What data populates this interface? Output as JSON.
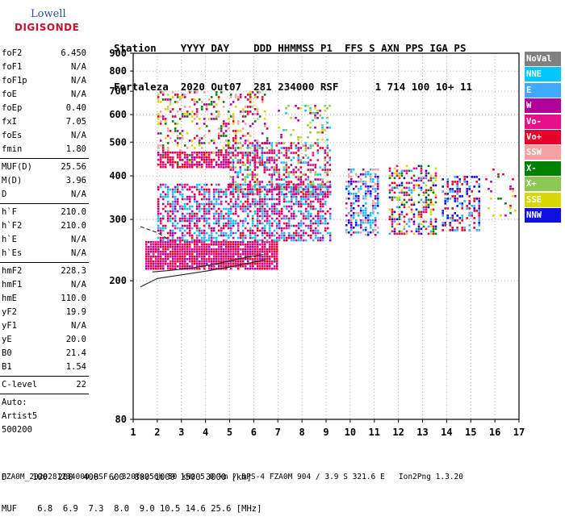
{
  "logo": {
    "line1": "Lowell",
    "line2": "DIGISONDE"
  },
  "header": {
    "row1": "Station    YYYY DAY    DDD HHMMSS P1  FFS S AXN PPS IGA PS",
    "row2": "Fortaleza  2020 Out07  281 234000 RSF      1 714 100 10+ 11"
  },
  "params": [
    {
      "name": "foF2",
      "value": "6.450"
    },
    {
      "name": "foF1",
      "value": "N/A"
    },
    {
      "name": "foF1p",
      "value": "N/A"
    },
    {
      "name": "foE",
      "value": "N/A"
    },
    {
      "name": "foEp",
      "value": "0.40"
    },
    {
      "name": "fxI",
      "value": "7.05"
    },
    {
      "name": "foEs",
      "value": "N/A"
    },
    {
      "name": "fmin",
      "value": "1.80",
      "sep": true
    },
    {
      "name": "MUF(D)",
      "value": "25.56"
    },
    {
      "name": "M(D)",
      "value": "3.96"
    },
    {
      "name": "D",
      "value": "N/A",
      "sep": true
    },
    {
      "name": "h`F",
      "value": "210.0"
    },
    {
      "name": "h`F2",
      "value": "210.0"
    },
    {
      "name": "h`E",
      "value": "N/A"
    },
    {
      "name": "h`Es",
      "value": "N/A",
      "sep": true
    },
    {
      "name": "hmF2",
      "value": "228.3"
    },
    {
      "name": "hmF1",
      "value": "N/A"
    },
    {
      "name": "hmE",
      "value": "110.0"
    },
    {
      "name": "yF2",
      "value": "19.9"
    },
    {
      "name": "yF1",
      "value": "N/A"
    },
    {
      "name": "yE",
      "value": "20.0"
    },
    {
      "name": "B0",
      "value": "21.4"
    },
    {
      "name": "B1",
      "value": "1.54",
      "sep": true
    },
    {
      "name": "C-level",
      "value": "22",
      "sep": true
    },
    {
      "name": "Auto:",
      "value": ""
    },
    {
      "name": "Artist5",
      "value": ""
    },
    {
      "name": "500200",
      "value": ""
    }
  ],
  "legend": [
    {
      "label": "NoVal",
      "color": "#808080",
      "text": "#ffffff"
    },
    {
      "label": "NNE",
      "color": "#00c8ff",
      "text": "#ffffff"
    },
    {
      "label": "E",
      "color": "#40a8ff",
      "text": "#ffffff"
    },
    {
      "label": "W",
      "color": "#b0009a",
      "text": "#ffffff"
    },
    {
      "label": "Vo-",
      "color": "#e8108a",
      "text": "#ffffff"
    },
    {
      "label": "Vo+",
      "color": "#e8002a",
      "text": "#ffffff"
    },
    {
      "label": "SSW",
      "color": "#f4a0a0",
      "text": "#ffffff"
    },
    {
      "label": "X-",
      "color": "#008000",
      "text": "#ffffff"
    },
    {
      "label": "X+",
      "color": "#8cc850",
      "text": "#ffffff"
    },
    {
      "label": "SSE",
      "color": "#d8d800",
      "text": "#ffffff"
    },
    {
      "label": "NNW",
      "color": "#1010e0",
      "text": "#ffffff"
    }
  ],
  "footer": {
    "d_label": "D",
    "d_values": "100  200  400  600  800 1000 1500 3000 [km]",
    "muf_label": "MUF",
    "muf_values": "6.8  6.9  7.3  8.0  9.0 10.5 14.6 25.6 [MHz]",
    "info": "FZA0M_2020281234000.RSF / 320fx256h 50 kHz 5.0 km / DPS-4 FZA0M 904 / 3.9 S 321.6 E   Ion2Png 1.3.20"
  },
  "chart_data": {
    "type": "scatter",
    "subtype": "ionogram",
    "x_axis": {
      "range": [
        1,
        17
      ],
      "ticks": [
        1,
        2,
        3,
        4,
        5,
        6,
        7,
        8,
        9,
        10,
        11,
        12,
        13,
        14,
        15,
        16,
        17
      ]
    },
    "y_axis": {
      "range": [
        80,
        900
      ],
      "scale": "log",
      "ticks": [
        80,
        200,
        300,
        400,
        500,
        600,
        700,
        800,
        900
      ]
    },
    "grid": "dotted",
    "legend_position": "right",
    "trace_lines": [
      {
        "style": "solid",
        "x": [
          1.3,
          2.0,
          3.0,
          4.0,
          5.0,
          6.0,
          6.5
        ],
        "y": [
          192,
          203,
          208,
          213,
          219,
          226,
          230
        ]
      },
      {
        "style": "solid",
        "x": [
          1.8,
          2.5,
          3.5,
          4.5,
          5.5,
          6.4
        ],
        "y": [
          212,
          214,
          218,
          224,
          232,
          238
        ]
      },
      {
        "style": "dashed",
        "x": [
          1.3,
          2.0,
          2.5
        ],
        "y": [
          286,
          275,
          262
        ]
      }
    ],
    "echo_clusters": [
      {
        "x": [
          1.5,
          7.0
        ],
        "y": [
          215,
          260
        ],
        "colors": [
          "Vo+",
          "W",
          "Vo-"
        ],
        "density": 0.9
      },
      {
        "x": [
          2.0,
          9.2
        ],
        "y": [
          260,
          380
        ],
        "colors": [
          "W",
          "Vo-",
          "Vo+",
          "E",
          "NNE"
        ],
        "density": 0.6
      },
      {
        "x": [
          2.0,
          6.6
        ],
        "y": [
          420,
          700
        ],
        "colors": [
          "Vo+",
          "W",
          "X-",
          "SSE",
          "SSW"
        ],
        "density": 0.25
      },
      {
        "x": [
          2.0,
          5.0
        ],
        "y": [
          420,
          470
        ],
        "colors": [
          "Vo+",
          "W",
          "Vo-"
        ],
        "density": 0.7
      },
      {
        "x": [
          5.0,
          9.2
        ],
        "y": [
          350,
          500
        ],
        "colors": [
          "W",
          "Vo-",
          "Vo+",
          "X+",
          "NNE"
        ],
        "density": 0.45
      },
      {
        "x": [
          7.0,
          9.2
        ],
        "y": [
          500,
          640
        ],
        "colors": [
          "NNE",
          "X+",
          "SSE",
          "W"
        ],
        "density": 0.2
      },
      {
        "x": [
          9.8,
          11.2
        ],
        "y": [
          270,
          420
        ],
        "colors": [
          "NNE",
          "E",
          "NNW",
          "W",
          "SSW"
        ],
        "density": 0.5
      },
      {
        "x": [
          11.6,
          13.6
        ],
        "y": [
          270,
          430
        ],
        "colors": [
          "NNW",
          "Vo-",
          "Vo+",
          "SSE",
          "E",
          "X-"
        ],
        "density": 0.45
      },
      {
        "x": [
          13.8,
          15.4
        ],
        "y": [
          275,
          400
        ],
        "colors": [
          "NNW",
          "E",
          "Vo+"
        ],
        "density": 0.4
      },
      {
        "x": [
          15.5,
          17.0
        ],
        "y": [
          300,
          420
        ],
        "colors": [
          "W",
          "SSE",
          "X-",
          "Vo+"
        ],
        "density": 0.08
      }
    ]
  }
}
